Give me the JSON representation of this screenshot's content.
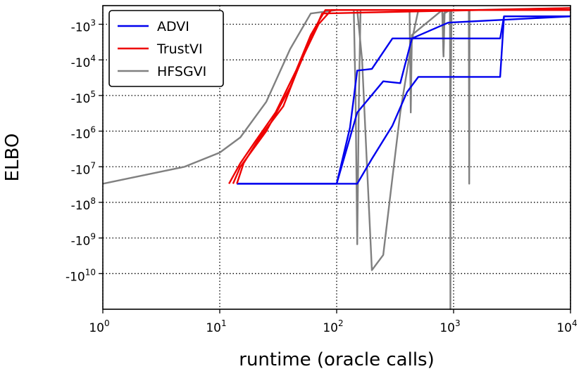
{
  "chart_data": {
    "type": "line",
    "title": "",
    "xlabel": "runtime (oracle calls)",
    "ylabel": "ELBO",
    "xscale": "log",
    "yscale": "symlog-negative",
    "xlim": [
      1,
      10000
    ],
    "ylim": [
      -100000000000.0,
      -300
    ],
    "grid": true,
    "legend_placement": "top-left",
    "x_ticks": [
      {
        "value": 1,
        "base": "10",
        "exp": "0"
      },
      {
        "value": 10,
        "base": "10",
        "exp": "1"
      },
      {
        "value": 100,
        "base": "10",
        "exp": "2"
      },
      {
        "value": 1000,
        "base": "10",
        "exp": "3"
      },
      {
        "value": 10000,
        "base": "10",
        "exp": "4"
      }
    ],
    "y_ticks": [
      {
        "value": -1000,
        "base": "-10",
        "exp": "3"
      },
      {
        "value": -10000,
        "base": "-10",
        "exp": "4"
      },
      {
        "value": -100000,
        "base": "-10",
        "exp": "5"
      },
      {
        "value": -1000000,
        "base": "-10",
        "exp": "6"
      },
      {
        "value": -10000000,
        "base": "-10",
        "exp": "7"
      },
      {
        "value": -100000000,
        "base": "-10",
        "exp": "8"
      },
      {
        "value": -1000000000,
        "base": "-10",
        "exp": "9"
      },
      {
        "value": -10000000000,
        "base": "-10",
        "exp": "10"
      }
    ],
    "series": [
      {
        "name": "ADVI",
        "color": "#0000ee",
        "lines": [
          [
            [
              14,
              -30000000.0
            ],
            [
              100,
              -30000000.0
            ],
            [
              130,
              -800000.0
            ],
            [
              150,
              -20000.0
            ],
            [
              200,
              -18000.0
            ],
            [
              300,
              -2500.0
            ],
            [
              2500,
              -2500.0
            ],
            [
              2700,
              -600
            ],
            [
              10000,
              -600
            ]
          ],
          [
            [
              14,
              -30000000.0
            ],
            [
              150,
              -30000000.0
            ],
            [
              200,
              -6000000.0
            ],
            [
              300,
              -700000.0
            ],
            [
              400,
              -80000.0
            ],
            [
              500,
              -30000.0
            ],
            [
              2500,
              -30000.0
            ],
            [
              2700,
              -600
            ],
            [
              10000,
              -600
            ]
          ],
          [
            [
              100,
              -30000000.0
            ],
            [
              150,
              -300000.0
            ],
            [
              250,
              -40000.0
            ],
            [
              350,
              -45000.0
            ],
            [
              440,
              -2500.0
            ],
            [
              900,
              -900
            ],
            [
              10000,
              -600
            ]
          ]
        ]
      },
      {
        "name": "TrustVI",
        "color": "#ee0000",
        "lines": [
          [
            [
              12,
              -30000000.0
            ],
            [
              15,
              -8000000.0
            ],
            [
              20,
              -2000000.0
            ],
            [
              30,
              -300000.0
            ],
            [
              45,
              -20000.0
            ],
            [
              60,
              -2000.0
            ],
            [
              80,
              -400
            ],
            [
              10000,
              -400
            ]
          ],
          [
            [
              14,
              -30000000.0
            ],
            [
              16,
              -8000000.0
            ],
            [
              22,
              -1500000.0
            ],
            [
              35,
              -200000.0
            ],
            [
              50,
              -10000.0
            ],
            [
              70,
              -1000.0
            ],
            [
              90,
              -400
            ],
            [
              10000,
              -400
            ]
          ],
          [
            [
              13,
              -30000000.0
            ],
            [
              15,
              -10000000.0
            ],
            [
              25,
              -1000000.0
            ],
            [
              40,
              -60000.0
            ],
            [
              55,
              -5000.0
            ],
            [
              75,
              -500
            ],
            [
              10000,
              -350
            ]
          ]
        ]
      },
      {
        "name": "HFSGVI",
        "color": "#808080",
        "lines": [
          [
            [
              1,
              -30000000.0
            ],
            [
              5,
              -10000000.0
            ],
            [
              10,
              -4000000.0
            ],
            [
              15,
              -1500000.0
            ],
            [
              25,
              -150000.0
            ],
            [
              40,
              -5000.0
            ],
            [
              60,
              -500
            ],
            [
              100,
              -400
            ],
            [
              140,
              -400
            ],
            [
              145,
              -100000.0
            ],
            [
              150,
              -1500000000.0
            ],
            [
              155,
              -100000.0
            ],
            [
              160,
              -400
            ],
            [
              420,
              -400
            ],
            [
              430,
              -300000.0
            ],
            [
              440,
              -2000.0
            ],
            [
              800,
              -400
            ],
            [
              820,
              -8000.0
            ],
            [
              830,
              -500
            ],
            [
              930,
              -400
            ],
            [
              935,
              -100000.0
            ],
            [
              940,
              -100000000000.0
            ],
            [
              945,
              -100000.0
            ],
            [
              960,
              -400
            ],
            [
              1350,
              -400
            ],
            [
              1360,
              -30000000.0
            ],
            [
              1370,
              -400
            ],
            [
              10000,
              -350
            ]
          ],
          [
            [
              150,
              -400
            ],
            [
              165,
              -10000.0
            ],
            [
              180,
              -5000000.0
            ],
            [
              200,
              -8000000000.0
            ],
            [
              250,
              -3000000000.0
            ],
            [
              300,
              -20000000.0
            ],
            [
              350,
              -300000.0
            ],
            [
              400,
              -20000.0
            ],
            [
              450,
              -2000.0
            ],
            [
              500,
              -400
            ],
            [
              800,
              -400
            ],
            [
              820,
              -8000.0
            ],
            [
              840,
              -400
            ],
            [
              10000,
              -400
            ]
          ]
        ]
      }
    ]
  }
}
